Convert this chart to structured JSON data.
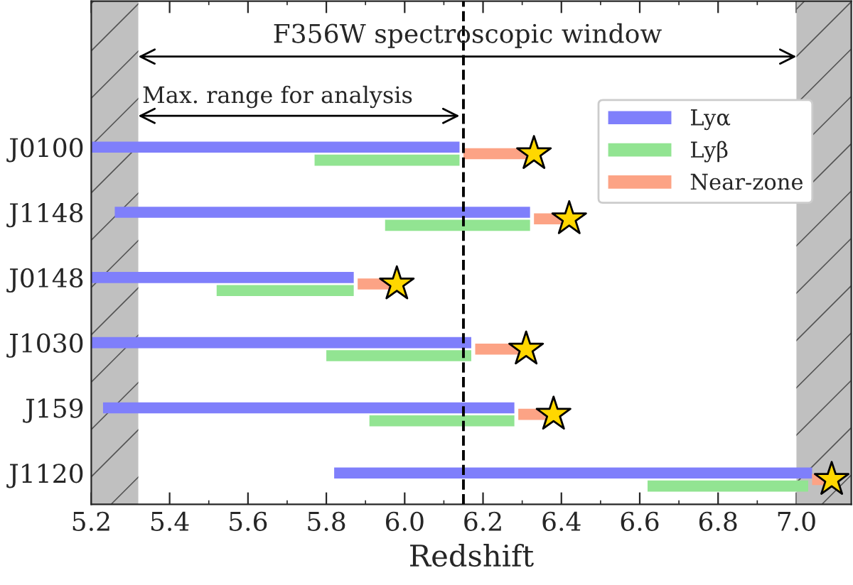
{
  "chart_data": {
    "type": "bar",
    "orientation": "horizontal",
    "xlabel": "Redshift",
    "categories": [
      "J0100",
      "J1148",
      "J0148",
      "J1030",
      "J159",
      "J1120"
    ],
    "series": [
      {
        "name": "Lyα",
        "color": "#7f7ffb",
        "base": [
          5.2,
          5.26,
          5.2,
          5.2,
          5.23,
          5.82
        ],
        "values": [
          0.94,
          1.06,
          0.67,
          0.97,
          1.05,
          1.22
        ]
      },
      {
        "name": "Lyβ",
        "color": "#92e492",
        "base": [
          5.77,
          5.95,
          5.52,
          5.8,
          5.91,
          6.62
        ],
        "values": [
          0.37,
          0.37,
          0.35,
          0.37,
          0.37,
          0.41
        ]
      },
      {
        "name": "Near-zone",
        "color": "#fca385",
        "base": [
          6.15,
          6.33,
          5.88,
          6.18,
          6.29,
          7.04
        ],
        "values": [
          0.16,
          0.07,
          0.08,
          0.11,
          0.07,
          0.04
        ]
      },
      {
        "type": "scatter",
        "color": "#ffd700",
        "marker": "star",
        "values": [
          6.33,
          6.42,
          5.98,
          6.31,
          6.38,
          7.09
        ]
      }
    ],
    "xlim": [
      5.2,
      7.14
    ],
    "xticks": [
      {
        "value": 5.2,
        "label": "5.2"
      },
      {
        "value": 5.4,
        "label": "5.4"
      },
      {
        "value": 5.6,
        "label": "5.6"
      },
      {
        "value": 5.8,
        "label": "5.8"
      },
      {
        "value": 6.0,
        "label": "6.0"
      },
      {
        "value": 6.2,
        "label": "6.2"
      },
      {
        "value": 6.4,
        "label": "6.4"
      },
      {
        "value": 6.6,
        "label": "6.6"
      },
      {
        "value": 6.8,
        "label": "6.8"
      },
      {
        "value": 7.0,
        "label": "7.0"
      }
    ],
    "bands": [
      {
        "axis": "x",
        "from": 5.2,
        "to": 5.32,
        "color": "#c0c0c0"
      },
      {
        "axis": "x",
        "from": 7.0,
        "to": 7.14,
        "color": "#c0c0c0"
      }
    ],
    "ref_lines": [
      {
        "axis": "x",
        "value": 6.15,
        "color": "#000000",
        "line_style": "dashed"
      }
    ],
    "annotations": [
      "F356W spectroscopic window",
      "Max. range for analysis"
    ],
    "legend": "top right",
    "grid": false
  }
}
